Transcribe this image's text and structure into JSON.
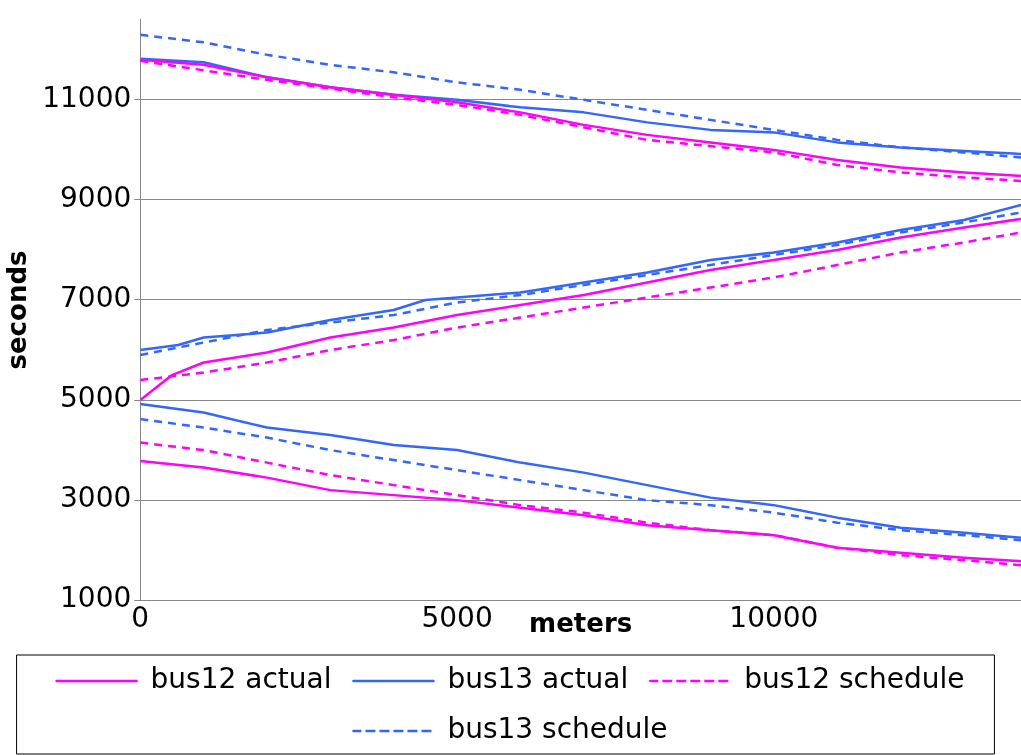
{
  "chart_data": {
    "type": "line",
    "xlabel": "meters",
    "ylabel": "seconds",
    "xlim": [
      0,
      13900
    ],
    "xticks": [
      0,
      5000,
      10000
    ],
    "ylim": [
      1000,
      12600
    ],
    "yticks": [
      1000,
      3000,
      5000,
      7000,
      9000,
      11000
    ],
    "grid": "y",
    "legend": "bottom",
    "marker": "none",
    "series": [
      {
        "name": "bus12 actual",
        "color": "#ff00ff",
        "line_style": "solid",
        "x": [
          0,
          1000,
          2000,
          3000,
          4000,
          5000,
          6000,
          7000,
          8000,
          9000,
          10000,
          11000,
          12000,
          13000,
          13900
        ],
        "values": [
          11800,
          11700,
          11450,
          11250,
          11100,
          10950,
          10750,
          10500,
          10300,
          10150,
          10000,
          9800,
          9650,
          9550,
          9480
        ]
      },
      {
        "name": "bus13 actual",
        "color": "#3366ff",
        "line_style": "solid",
        "x": [
          0,
          1000,
          2000,
          3000,
          4000,
          5000,
          6000,
          7000,
          8000,
          9000,
          10000,
          11000,
          12000,
          13000,
          13900
        ],
        "values": [
          11820,
          11750,
          11450,
          11250,
          11100,
          11000,
          10850,
          10750,
          10550,
          10400,
          10350,
          10150,
          10050,
          9980,
          9920
        ]
      },
      {
        "name": "bus12 schedule",
        "color": "#ff00ff",
        "line_style": "dashed",
        "x": [
          0,
          2000,
          4000,
          5000,
          6000,
          8000,
          10000,
          11000,
          12000,
          13000,
          13900
        ],
        "values": [
          11780,
          11400,
          11050,
          10900,
          10700,
          10200,
          9950,
          9700,
          9550,
          9450,
          9380
        ]
      },
      {
        "name": "bus13 schedule",
        "color": "#3366ff",
        "line_style": "dashed",
        "x": [
          0,
          1000,
          2000,
          3000,
          4000,
          5000,
          6000,
          7000,
          8000,
          9000,
          10000,
          11000,
          12000,
          13000,
          13900
        ],
        "values": [
          12300,
          12150,
          11900,
          11700,
          11550,
          11350,
          11200,
          11000,
          10800,
          10600,
          10400,
          10200,
          10050,
          9950,
          9850
        ]
      },
      {
        "color": "#ff00ff",
        "line_style": "solid",
        "x": [
          0,
          500,
          1000,
          2000,
          3000,
          4000,
          5000,
          6000,
          7000,
          8000,
          9000,
          10000,
          11000,
          12000,
          13000,
          13900
        ],
        "values": [
          5000,
          5500,
          5750,
          5950,
          6250,
          6450,
          6700,
          6900,
          7100,
          7350,
          7600,
          7800,
          8000,
          8250,
          8450,
          8620
        ]
      },
      {
        "color": "#3366ff",
        "line_style": "solid",
        "x": [
          0,
          600,
          1000,
          2000,
          3000,
          4000,
          4500,
          5000,
          6000,
          7000,
          8000,
          9000,
          10000,
          11000,
          12000,
          13000,
          13900
        ],
        "values": [
          6000,
          6100,
          6250,
          6350,
          6600,
          6800,
          7000,
          7050,
          7150,
          7350,
          7550,
          7800,
          7950,
          8150,
          8400,
          8600,
          8900
        ]
      },
      {
        "color": "#ff00ff",
        "line_style": "dashed",
        "x": [
          0,
          1000,
          2000,
          3000,
          4000,
          5000,
          6000,
          7000,
          8000,
          9000,
          10000,
          11000,
          12000,
          13000,
          13900
        ],
        "values": [
          5400,
          5550,
          5750,
          6000,
          6200,
          6450,
          6650,
          6850,
          7050,
          7250,
          7450,
          7700,
          7950,
          8150,
          8350
        ]
      },
      {
        "color": "#3366ff",
        "line_style": "dashed",
        "x": [
          0,
          1000,
          2000,
          3000,
          4000,
          5000,
          6000,
          7000,
          8000,
          9000,
          10000,
          11000,
          12000,
          13000,
          13900
        ],
        "values": [
          5900,
          6150,
          6400,
          6550,
          6700,
          6950,
          7100,
          7300,
          7500,
          7700,
          7900,
          8100,
          8350,
          8550,
          8750
        ]
      },
      {
        "color": "#ff00ff",
        "line_style": "solid",
        "x": [
          0,
          1000,
          2000,
          3000,
          4000,
          5000,
          6000,
          7000,
          8000,
          9000,
          10000,
          11000,
          12000,
          13000,
          13900
        ],
        "values": [
          3780,
          3650,
          3450,
          3200,
          3100,
          3000,
          2850,
          2700,
          2500,
          2400,
          2300,
          2050,
          1950,
          1850,
          1780
        ]
      },
      {
        "color": "#3366ff",
        "line_style": "solid",
        "x": [
          0,
          1000,
          2000,
          3000,
          4000,
          5000,
          6000,
          7000,
          8000,
          9000,
          10000,
          11000,
          12000,
          13000,
          13900
        ],
        "values": [
          4920,
          4750,
          4450,
          4300,
          4100,
          4000,
          3750,
          3550,
          3300,
          3050,
          2900,
          2650,
          2450,
          2350,
          2250
        ]
      },
      {
        "color": "#ff00ff",
        "line_style": "dashed",
        "x": [
          0,
          1000,
          2000,
          3000,
          4000,
          5000,
          6000,
          7000,
          8000,
          9000,
          10000,
          11000,
          12000,
          13000,
          13900
        ],
        "values": [
          4150,
          4000,
          3750,
          3500,
          3300,
          3100,
          2900,
          2750,
          2550,
          2400,
          2300,
          2050,
          1900,
          1800,
          1700
        ]
      },
      {
        "color": "#3366ff",
        "line_style": "dashed",
        "x": [
          0,
          1000,
          2000,
          3000,
          4000,
          5000,
          6000,
          7000,
          8000,
          9000,
          10000,
          11000,
          12000,
          13000,
          13900
        ],
        "values": [
          4620,
          4450,
          4250,
          4000,
          3800,
          3600,
          3400,
          3200,
          3000,
          2900,
          2750,
          2550,
          2400,
          2300,
          2200
        ]
      }
    ]
  }
}
